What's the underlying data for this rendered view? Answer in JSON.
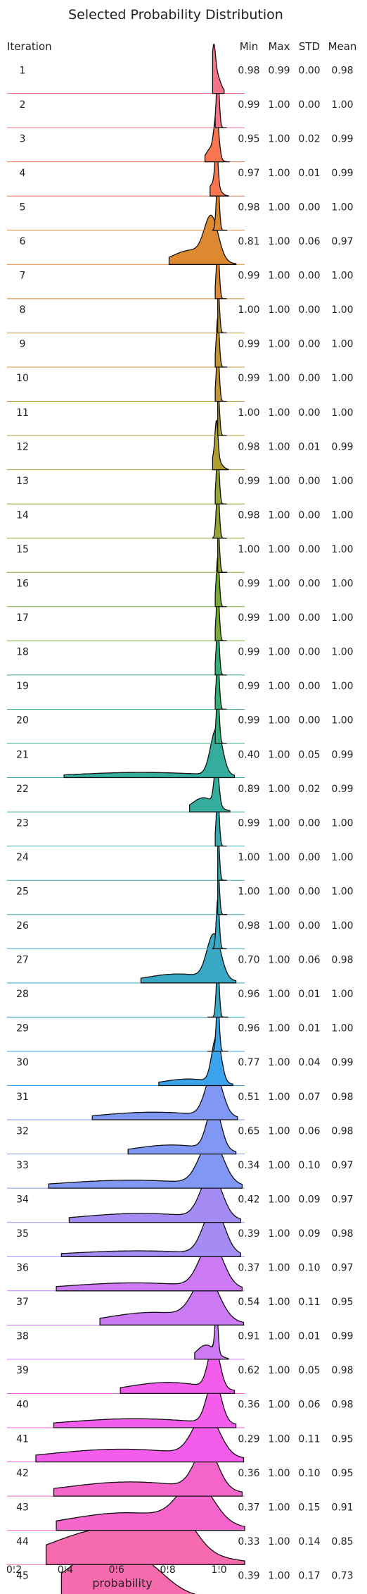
{
  "chart_data": {
    "type": "ridgeline",
    "title": "Selected Probability Distribution",
    "xlabel": "probability",
    "x_ticks": [
      "0.2",
      "0.4",
      "0.6",
      "0.8",
      "1.0"
    ],
    "xlim": [
      0.2,
      1.1
    ],
    "columns": {
      "iteration": "Iteration",
      "min": "Min",
      "max": "Max",
      "std": "STD",
      "mean": "Mean"
    },
    "rows": [
      {
        "iteration": "1",
        "min": "0.98",
        "max": "0.99",
        "std": "0.00",
        "mean": "0.98"
      },
      {
        "iteration": "2",
        "min": "0.99",
        "max": "1.00",
        "std": "0.00",
        "mean": "1.00"
      },
      {
        "iteration": "3",
        "min": "0.95",
        "max": "1.00",
        "std": "0.02",
        "mean": "0.99"
      },
      {
        "iteration": "4",
        "min": "0.97",
        "max": "1.00",
        "std": "0.01",
        "mean": "0.99"
      },
      {
        "iteration": "5",
        "min": "0.98",
        "max": "1.00",
        "std": "0.00",
        "mean": "1.00"
      },
      {
        "iteration": "6",
        "min": "0.81",
        "max": "1.00",
        "std": "0.06",
        "mean": "0.97"
      },
      {
        "iteration": "7",
        "min": "0.99",
        "max": "1.00",
        "std": "0.00",
        "mean": "1.00"
      },
      {
        "iteration": "8",
        "min": "1.00",
        "max": "1.00",
        "std": "0.00",
        "mean": "1.00"
      },
      {
        "iteration": "9",
        "min": "0.99",
        "max": "1.00",
        "std": "0.00",
        "mean": "1.00"
      },
      {
        "iteration": "10",
        "min": "0.99",
        "max": "1.00",
        "std": "0.00",
        "mean": "1.00"
      },
      {
        "iteration": "11",
        "min": "1.00",
        "max": "1.00",
        "std": "0.00",
        "mean": "1.00"
      },
      {
        "iteration": "12",
        "min": "0.98",
        "max": "1.00",
        "std": "0.01",
        "mean": "0.99"
      },
      {
        "iteration": "13",
        "min": "0.99",
        "max": "1.00",
        "std": "0.00",
        "mean": "1.00"
      },
      {
        "iteration": "14",
        "min": "0.98",
        "max": "1.00",
        "std": "0.00",
        "mean": "1.00"
      },
      {
        "iteration": "15",
        "min": "1.00",
        "max": "1.00",
        "std": "0.00",
        "mean": "1.00"
      },
      {
        "iteration": "16",
        "min": "0.99",
        "max": "1.00",
        "std": "0.00",
        "mean": "1.00"
      },
      {
        "iteration": "17",
        "min": "0.99",
        "max": "1.00",
        "std": "0.00",
        "mean": "1.00"
      },
      {
        "iteration": "18",
        "min": "0.99",
        "max": "1.00",
        "std": "0.00",
        "mean": "1.00"
      },
      {
        "iteration": "19",
        "min": "0.99",
        "max": "1.00",
        "std": "0.00",
        "mean": "1.00"
      },
      {
        "iteration": "20",
        "min": "0.99",
        "max": "1.00",
        "std": "0.00",
        "mean": "1.00"
      },
      {
        "iteration": "21",
        "min": "0.40",
        "max": "1.00",
        "std": "0.05",
        "mean": "0.99"
      },
      {
        "iteration": "22",
        "min": "0.89",
        "max": "1.00",
        "std": "0.02",
        "mean": "0.99"
      },
      {
        "iteration": "23",
        "min": "0.99",
        "max": "1.00",
        "std": "0.00",
        "mean": "1.00"
      },
      {
        "iteration": "24",
        "min": "1.00",
        "max": "1.00",
        "std": "0.00",
        "mean": "1.00"
      },
      {
        "iteration": "25",
        "min": "1.00",
        "max": "1.00",
        "std": "0.00",
        "mean": "1.00"
      },
      {
        "iteration": "26",
        "min": "0.98",
        "max": "1.00",
        "std": "0.00",
        "mean": "1.00"
      },
      {
        "iteration": "27",
        "min": "0.70",
        "max": "1.00",
        "std": "0.06",
        "mean": "0.98"
      },
      {
        "iteration": "28",
        "min": "0.96",
        "max": "1.00",
        "std": "0.01",
        "mean": "1.00"
      },
      {
        "iteration": "29",
        "min": "0.96",
        "max": "1.00",
        "std": "0.01",
        "mean": "1.00"
      },
      {
        "iteration": "30",
        "min": "0.77",
        "max": "1.00",
        "std": "0.04",
        "mean": "0.99"
      },
      {
        "iteration": "31",
        "min": "0.51",
        "max": "1.00",
        "std": "0.07",
        "mean": "0.98"
      },
      {
        "iteration": "32",
        "min": "0.65",
        "max": "1.00",
        "std": "0.06",
        "mean": "0.98"
      },
      {
        "iteration": "33",
        "min": "0.34",
        "max": "1.00",
        "std": "0.10",
        "mean": "0.97"
      },
      {
        "iteration": "34",
        "min": "0.42",
        "max": "1.00",
        "std": "0.09",
        "mean": "0.97"
      },
      {
        "iteration": "35",
        "min": "0.39",
        "max": "1.00",
        "std": "0.09",
        "mean": "0.98"
      },
      {
        "iteration": "36",
        "min": "0.37",
        "max": "1.00",
        "std": "0.10",
        "mean": "0.97"
      },
      {
        "iteration": "37",
        "min": "0.54",
        "max": "1.00",
        "std": "0.11",
        "mean": "0.95"
      },
      {
        "iteration": "38",
        "min": "0.91",
        "max": "1.00",
        "std": "0.01",
        "mean": "0.99"
      },
      {
        "iteration": "39",
        "min": "0.62",
        "max": "1.00",
        "std": "0.05",
        "mean": "0.98"
      },
      {
        "iteration": "40",
        "min": "0.36",
        "max": "1.00",
        "std": "0.06",
        "mean": "0.98"
      },
      {
        "iteration": "41",
        "min": "0.29",
        "max": "1.00",
        "std": "0.11",
        "mean": "0.95"
      },
      {
        "iteration": "42",
        "min": "0.36",
        "max": "1.00",
        "std": "0.10",
        "mean": "0.95"
      },
      {
        "iteration": "43",
        "min": "0.37",
        "max": "1.00",
        "std": "0.15",
        "mean": "0.91"
      },
      {
        "iteration": "44",
        "min": "0.33",
        "max": "1.00",
        "std": "0.14",
        "mean": "0.85"
      },
      {
        "iteration": "45",
        "min": "0.39",
        "max": "1.00",
        "std": "0.17",
        "mean": "0.73"
      }
    ],
    "palette": [
      "#f77189",
      "#f7754f",
      "#dc8932",
      "#c39532",
      "#ae9d31",
      "#97a431",
      "#77ab31",
      "#33b07a",
      "#35ad9c",
      "#36abae",
      "#38a8c5",
      "#3ba3ec",
      "#8197f4",
      "#a48cf4",
      "#cc7af4",
      "#f45deb",
      "#f565cc",
      "#f66bad"
    ]
  }
}
